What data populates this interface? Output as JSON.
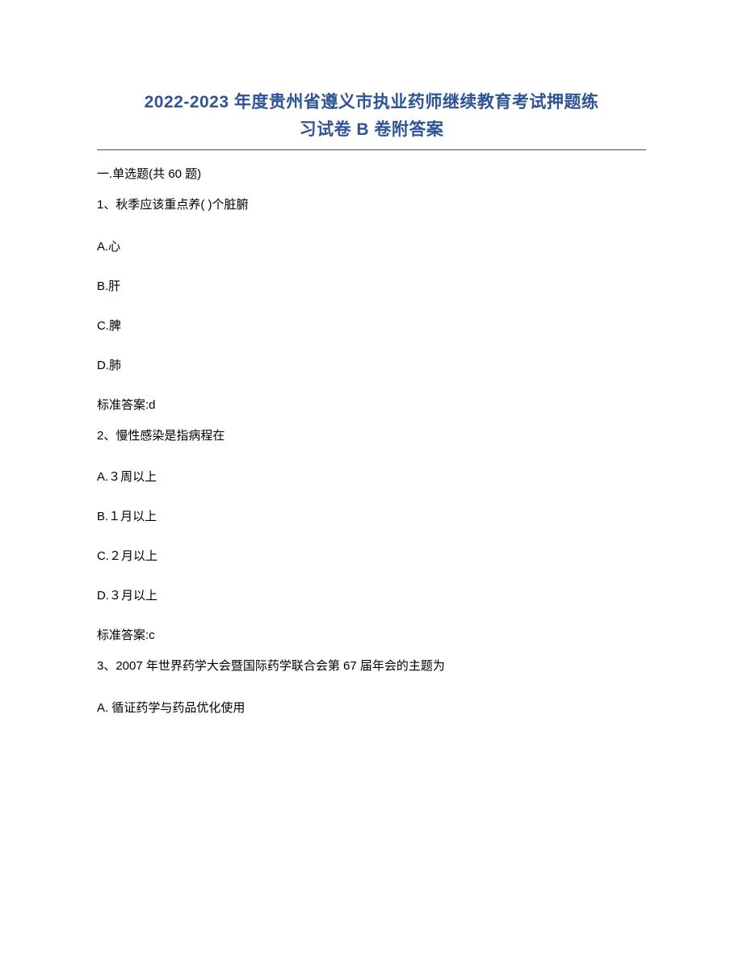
{
  "title": {
    "line1": "2022-2023 年度贵州省遵义市执业药师继续教育考试押题练",
    "line2": "习试卷 B 卷附答案",
    "color": "#2e5496",
    "fontsize": 21
  },
  "divider_color": "#2e5496",
  "section_header": "一.单选题(共 60 题)",
  "questions": [
    {
      "prompt": "1、秋季应该重点养(  )个脏腑",
      "options": [
        "A.心",
        "B.肝",
        "C.脾",
        "D.肺"
      ],
      "answer": "标准答案:d"
    },
    {
      "prompt": "2、慢性感染是指病程在",
      "options": [
        "A.３周以上",
        "B.１月以上",
        "C.２月以上",
        "D.３月以上"
      ],
      "answer": "标准答案:c"
    },
    {
      "prompt": "3、2007 年世界药学大会暨国际药学联合会第 67 届年会的主题为",
      "options": [
        "A. 循证药学与药品优化使用"
      ],
      "answer": null
    }
  ],
  "text_color": "#000000",
  "body_fontsize": 15,
  "background_color": "#ffffff"
}
